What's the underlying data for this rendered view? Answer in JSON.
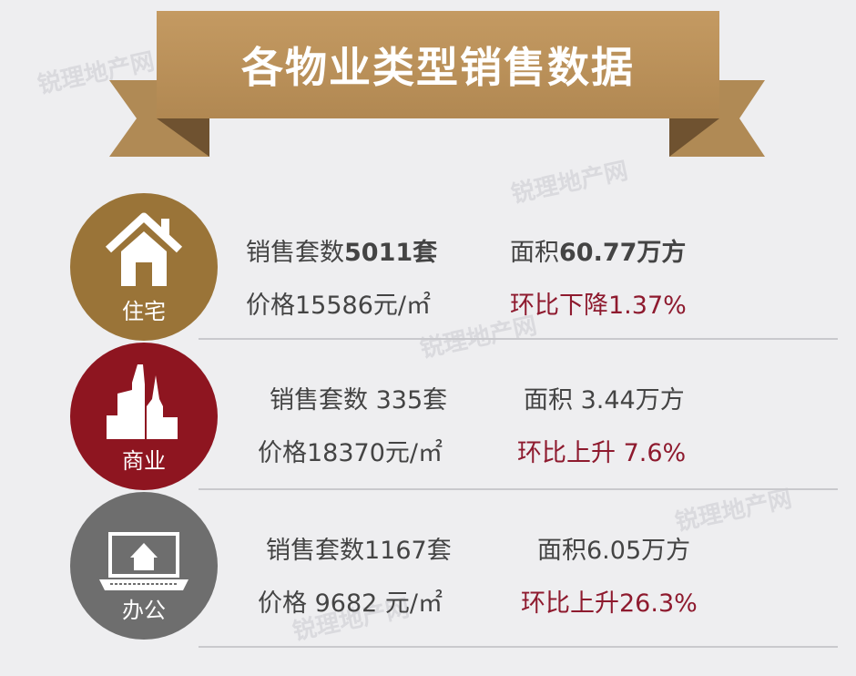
{
  "title": "各物业类型销售数据",
  "watermark": "锐理地产网",
  "colors": {
    "banner": "#b9905a",
    "residential": "#9a7438",
    "commercial": "#8e1520",
    "office": "#6e6e6e",
    "accent_red": "#8e1a2e"
  },
  "rows": [
    {
      "category": "住宅",
      "icon": "house-icon",
      "units_label": "销售套数",
      "units": "5011套",
      "area_label": "面积",
      "area": "60.77万方",
      "price_label": "价格",
      "price": "15586元/㎡",
      "change_label": "环比下降",
      "change": "1.37%"
    },
    {
      "category": "商业",
      "icon": "city-buildings-icon",
      "units_label": "销售套数",
      "units": " 335套",
      "area_label": "面积",
      "area": " 3.44万方",
      "price_label": "价格",
      "price": "18370元/㎡",
      "change_label": "环比上升",
      "change": " 7.6%"
    },
    {
      "category": "办公",
      "icon": "laptop-house-icon",
      "units_label": "销售套数",
      "units": "1167套",
      "area_label": "面积",
      "area": "6.05万方",
      "price_label": "价格",
      "price": " 9682 元/㎡",
      "change_label": "环比上升",
      "change": "26.3%"
    }
  ]
}
